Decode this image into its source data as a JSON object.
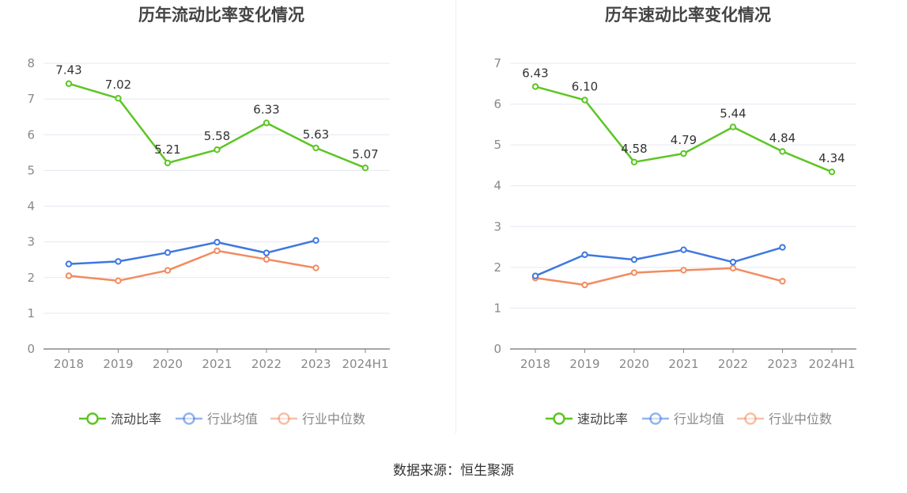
{
  "source_text": "数据来源：恒生聚源",
  "colors": {
    "main": "#5cc623",
    "avg": "#3e78e0",
    "median": "#f28b60",
    "grid": "#e6e9f2",
    "axis": "#888888",
    "tick_label": "#888888",
    "title": "#444444",
    "value_label": "#333333"
  },
  "chart_data": [
    {
      "type": "line",
      "title": "历年流动比率变化情况",
      "categories": [
        "2018",
        "2019",
        "2020",
        "2021",
        "2022",
        "2023",
        "2024H1"
      ],
      "ylim": [
        0,
        8
      ],
      "yticks": [
        0,
        1,
        2,
        3,
        4,
        5,
        6,
        7,
        8
      ],
      "grid": true,
      "legend_position": "bottom",
      "series": [
        {
          "name": "流动比率",
          "values": [
            7.43,
            7.02,
            5.21,
            5.58,
            6.33,
            5.63,
            5.07
          ],
          "labels": [
            "7.43",
            "7.02",
            "5.21",
            "5.58",
            "6.33",
            "5.63",
            "5.07"
          ]
        },
        {
          "name": "行业均值",
          "values": [
            2.38,
            2.45,
            2.7,
            2.99,
            2.69,
            3.04,
            null
          ]
        },
        {
          "name": "行业中位数",
          "values": [
            2.05,
            1.91,
            2.2,
            2.75,
            2.51,
            2.27,
            null
          ]
        }
      ]
    },
    {
      "type": "line",
      "title": "历年速动比率变化情况",
      "categories": [
        "2018",
        "2019",
        "2020",
        "2021",
        "2022",
        "2023",
        "2024H1"
      ],
      "ylim": [
        0,
        7
      ],
      "yticks": [
        0,
        1,
        2,
        3,
        4,
        5,
        6,
        7
      ],
      "grid": true,
      "legend_position": "bottom",
      "series": [
        {
          "name": "速动比率",
          "values": [
            6.43,
            6.1,
            4.58,
            4.79,
            5.44,
            4.84,
            4.34
          ],
          "labels": [
            "6.43",
            "6.10",
            "4.58",
            "4.79",
            "5.44",
            "4.84",
            "4.34"
          ]
        },
        {
          "name": "行业均值",
          "values": [
            1.79,
            2.31,
            2.19,
            2.43,
            2.13,
            2.49,
            null
          ]
        },
        {
          "name": "行业中位数",
          "values": [
            1.74,
            1.57,
            1.87,
            1.93,
            1.98,
            1.66,
            null
          ]
        }
      ]
    }
  ]
}
